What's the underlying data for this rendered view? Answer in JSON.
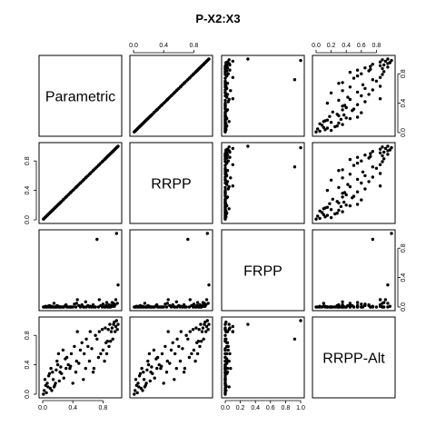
{
  "chart_data": {
    "type": "scatter",
    "title": "P-X2:X3",
    "variables": [
      "Parametric",
      "RRPP",
      "FRPP",
      "RRPP-Alt"
    ],
    "tick_labels": [
      "0.0",
      "0.4",
      "0.8"
    ],
    "tick_labels_frpp": [
      "0.0",
      "0.2",
      "0.4",
      "0.6",
      "0.8",
      "1.0"
    ],
    "axis_range": [
      0,
      1
    ],
    "points": {
      "Parametric": [
        0.01,
        0.02,
        0.03,
        0.04,
        0.05,
        0.06,
        0.07,
        0.08,
        0.09,
        0.1,
        0.11,
        0.12,
        0.13,
        0.14,
        0.15,
        0.16,
        0.17,
        0.18,
        0.19,
        0.2,
        0.21,
        0.22,
        0.23,
        0.24,
        0.25,
        0.27,
        0.28,
        0.3,
        0.31,
        0.32,
        0.34,
        0.36,
        0.37,
        0.38,
        0.4,
        0.42,
        0.44,
        0.45,
        0.46,
        0.48,
        0.5,
        0.52,
        0.54,
        0.55,
        0.57,
        0.58,
        0.6,
        0.62,
        0.63,
        0.65,
        0.67,
        0.68,
        0.7,
        0.72,
        0.74,
        0.75,
        0.77,
        0.79,
        0.8,
        0.82,
        0.83,
        0.84,
        0.85,
        0.86,
        0.87,
        0.88,
        0.89,
        0.9,
        0.91,
        0.92,
        0.93,
        0.94,
        0.95,
        0.96,
        0.97,
        0.98,
        0.99,
        1.0
      ],
      "RRPP": [
        0.01,
        0.02,
        0.03,
        0.04,
        0.05,
        0.06,
        0.07,
        0.08,
        0.09,
        0.1,
        0.11,
        0.12,
        0.13,
        0.14,
        0.15,
        0.16,
        0.17,
        0.18,
        0.19,
        0.2,
        0.21,
        0.22,
        0.23,
        0.24,
        0.25,
        0.27,
        0.28,
        0.3,
        0.31,
        0.32,
        0.34,
        0.36,
        0.37,
        0.38,
        0.4,
        0.42,
        0.44,
        0.45,
        0.46,
        0.48,
        0.5,
        0.52,
        0.54,
        0.55,
        0.57,
        0.58,
        0.6,
        0.62,
        0.63,
        0.65,
        0.67,
        0.68,
        0.7,
        0.72,
        0.74,
        0.75,
        0.77,
        0.79,
        0.8,
        0.82,
        0.83,
        0.84,
        0.85,
        0.86,
        0.87,
        0.88,
        0.89,
        0.9,
        0.91,
        0.92,
        0.93,
        0.94,
        0.95,
        0.96,
        0.97,
        0.98,
        0.99,
        1.0
      ],
      "FRPP": [
        0.0,
        0.0,
        0.0,
        0.01,
        0.0,
        0.0,
        0.01,
        0.0,
        0.02,
        0.0,
        0.0,
        0.01,
        0.0,
        0.0,
        0.05,
        0.0,
        0.0,
        0.0,
        0.02,
        0.0,
        0.01,
        0.0,
        0.0,
        0.0,
        0.0,
        0.0,
        0.0,
        0.02,
        0.03,
        0.0,
        0.0,
        0.0,
        0.0,
        0.0,
        0.0,
        0.04,
        0.0,
        0.05,
        0.1,
        0.02,
        0.0,
        0.03,
        0.0,
        0.0,
        0.07,
        0.0,
        0.02,
        0.0,
        0.01,
        0.0,
        0.03,
        0.0,
        0.0,
        0.92,
        0.0,
        0.1,
        0.02,
        0.0,
        0.04,
        0.0,
        0.0,
        0.02,
        0.06,
        0.0,
        0.0,
        0.03,
        0.0,
        0.0,
        0.02,
        0.06,
        0.01,
        0.05,
        0.01,
        0.03,
        0.1,
        1.0,
        0.05,
        0.3
      ],
      "RRPP-Alt": [
        0.0,
        0.05,
        0.2,
        0.12,
        0.02,
        0.15,
        0.1,
        0.25,
        0.28,
        0.08,
        0.35,
        0.05,
        0.3,
        0.2,
        0.1,
        0.12,
        0.15,
        0.33,
        0.45,
        0.4,
        0.55,
        0.18,
        0.3,
        0.37,
        0.28,
        0.6,
        0.22,
        0.48,
        0.35,
        0.5,
        0.4,
        0.35,
        0.38,
        0.55,
        0.15,
        0.65,
        0.3,
        0.45,
        0.85,
        0.42,
        0.6,
        0.7,
        0.2,
        0.55,
        0.35,
        0.75,
        0.65,
        0.45,
        0.85,
        0.62,
        0.3,
        0.35,
        0.8,
        0.75,
        0.5,
        0.85,
        0.55,
        0.88,
        0.6,
        0.45,
        0.9,
        0.7,
        0.55,
        0.72,
        0.88,
        0.65,
        0.95,
        0.72,
        0.85,
        0.9,
        0.75,
        0.95,
        0.98,
        0.85,
        0.92,
        1.0,
        0.88,
        0.95
      ]
    }
  }
}
